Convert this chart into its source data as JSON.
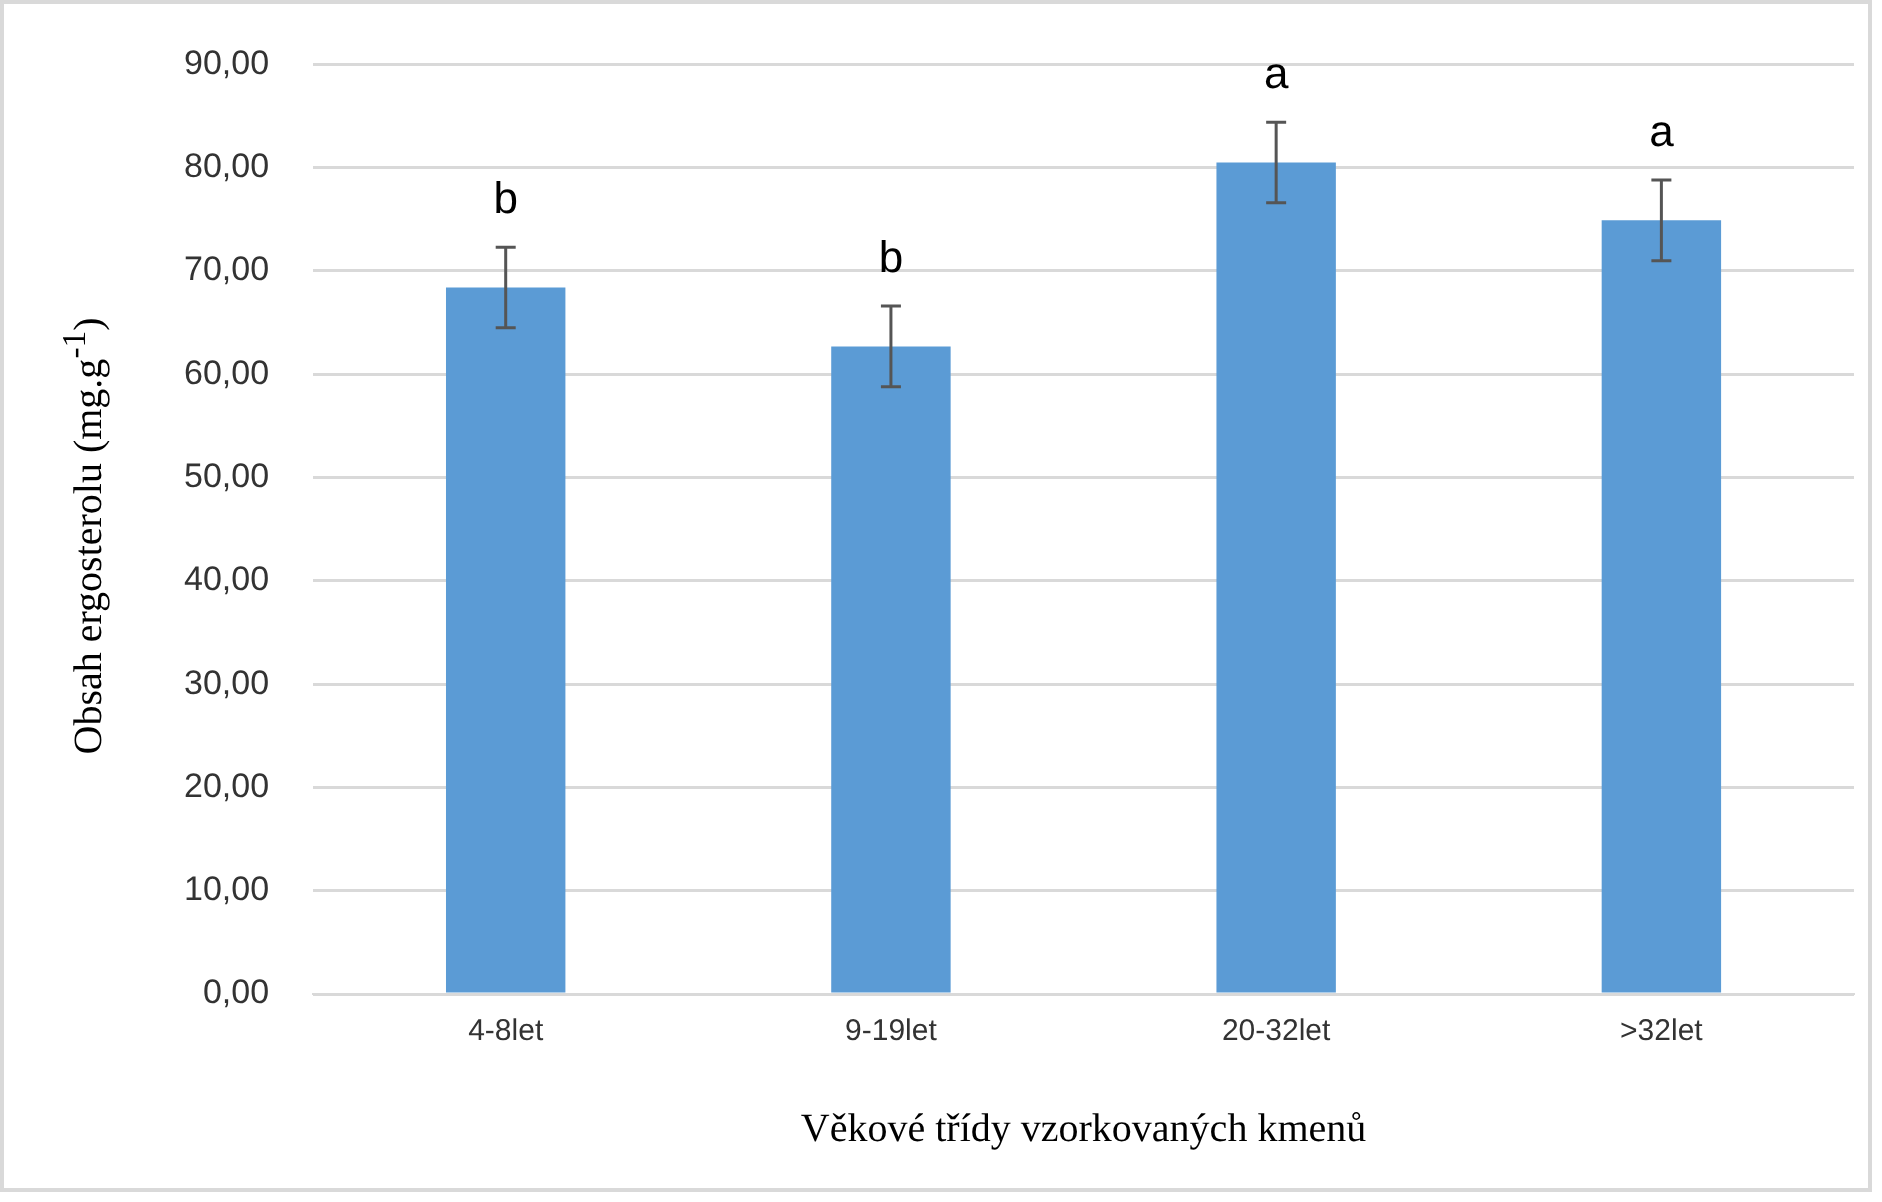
{
  "chart_data": {
    "type": "bar",
    "xlabel": "Věkové třídy vzorkovaných kmenů",
    "ylabel": "Obsah ergosterolu (mg.g$^{-1}$)",
    "categories": [
      "4-8let",
      "9-19let",
      "20-32let",
      ">32let"
    ],
    "series": [
      {
        "color": "#5b9bd5",
        "values": [
          68.4,
          62.7,
          80.5,
          74.9
        ],
        "errors": [
          3.9,
          3.9,
          3.9,
          3.9
        ]
      }
    ],
    "ylim": [
      0,
      90
    ],
    "yticks": [
      {
        "value": 0,
        "label": "0,00"
      },
      {
        "value": 10,
        "label": "10,00"
      },
      {
        "value": 20,
        "label": "20,00"
      },
      {
        "value": 30,
        "label": "30,00"
      },
      {
        "value": 40,
        "label": "40,00"
      },
      {
        "value": 50,
        "label": "50,00"
      },
      {
        "value": 60,
        "label": "60,00"
      },
      {
        "value": 70,
        "label": "70,00"
      },
      {
        "value": 80,
        "label": "80,00"
      },
      {
        "value": 90,
        "label": "90,00"
      }
    ],
    "grid": "y",
    "legend": false,
    "annotations": [
      "b",
      "b",
      "a",
      "a"
    ]
  }
}
